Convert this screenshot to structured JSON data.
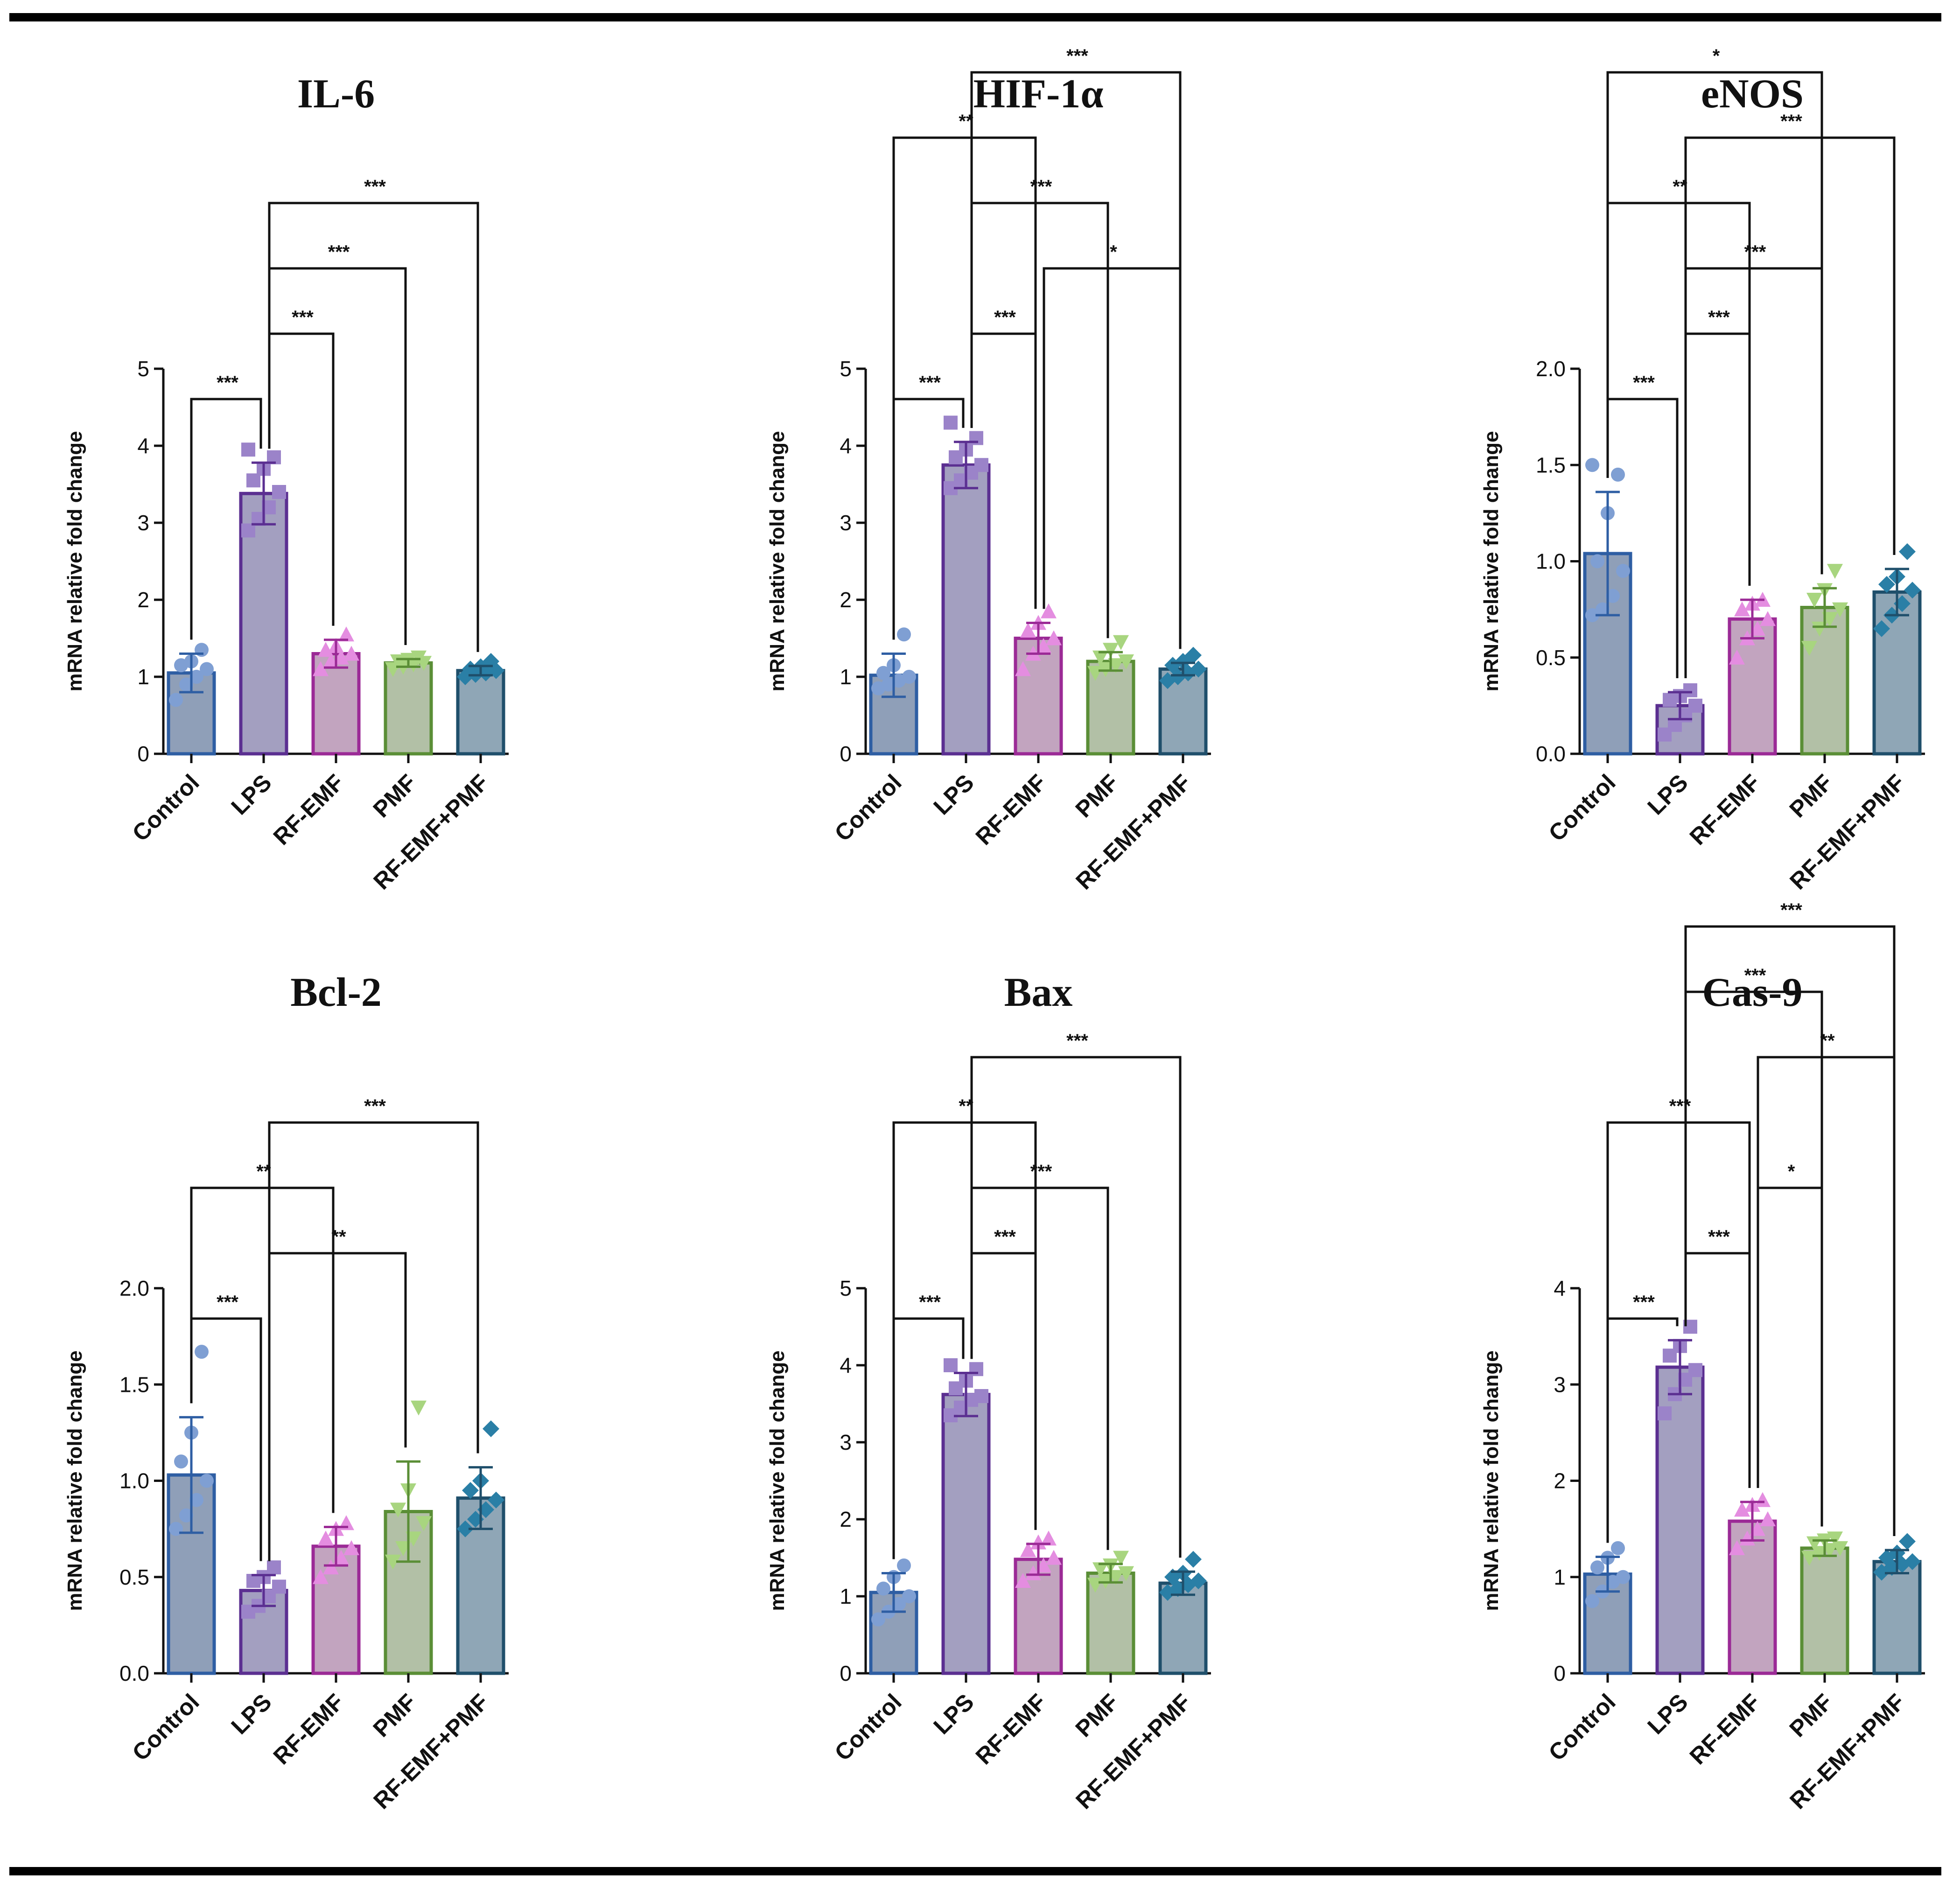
{
  "figure": {
    "y_axis_label": "mRNA relative fold change"
  },
  "groups": [
    "Control",
    "LPS",
    "RF-EMF",
    "PMF",
    "RF-EMF+PMF"
  ],
  "group_styles": [
    {
      "name": "Control",
      "fill": "#8f9fb8",
      "stroke": "#2e5ea3",
      "point": "#7f9fd3",
      "marker": "circle"
    },
    {
      "name": "LPS",
      "fill": "#a39fc0",
      "stroke": "#5b2f91",
      "point": "#9b83c9",
      "marker": "square"
    },
    {
      "name": "RF-EMF",
      "fill": "#c2a4bf",
      "stroke": "#9b2a96",
      "point": "#e48de0",
      "marker": "triangle-up"
    },
    {
      "name": "PMF",
      "fill": "#b2c0a6",
      "stroke": "#5a8e36",
      "point": "#a8d57f",
      "marker": "triangle-down"
    },
    {
      "name": "RF-EMF+PMF",
      "fill": "#8fa6b6",
      "stroke": "#1f4f6b",
      "point": "#2a7fa6",
      "marker": "diamond"
    }
  ],
  "chart_data": [
    {
      "type": "bar",
      "title": "IL-6",
      "ylabel": "mRNA relative fold change",
      "categories": [
        "Control",
        "LPS",
        "RF-EMF",
        "PMF",
        "RF-EMF+PMF"
      ],
      "values": [
        1.05,
        3.38,
        1.3,
        1.18,
        1.08
      ],
      "errors": [
        0.25,
        0.4,
        0.18,
        0.05,
        0.06
      ],
      "points": [
        [
          0.7,
          0.9,
          1.0,
          1.1,
          1.15,
          1.2,
          1.35
        ],
        [
          2.9,
          3.05,
          3.2,
          3.4,
          3.55,
          3.7,
          3.85,
          3.95
        ],
        [
          1.1,
          1.2,
          1.25,
          1.3,
          1.35,
          1.4,
          1.55
        ],
        [
          1.1,
          1.13,
          1.16,
          1.18,
          1.2,
          1.22,
          1.25
        ],
        [
          1.0,
          1.03,
          1.05,
          1.08,
          1.1,
          1.13,
          1.2
        ]
      ],
      "ylim": [
        0,
        5
      ],
      "yticks": [
        0,
        1,
        2,
        3,
        4,
        5
      ],
      "ytick_labels": [
        "0",
        "1",
        "2",
        "3",
        "4",
        "5"
      ],
      "significance": [
        {
          "from": "Control",
          "to": "LPS",
          "label": "***"
        },
        {
          "from": "LPS",
          "to": "RF-EMF",
          "label": "***"
        },
        {
          "from": "LPS",
          "to": "PMF",
          "label": "***"
        },
        {
          "from": "LPS",
          "to": "RF-EMF+PMF",
          "label": "***"
        }
      ]
    },
    {
      "type": "bar",
      "title": "HIF-1α",
      "ylabel": "mRNA relative fold change",
      "categories": [
        "Control",
        "LPS",
        "RF-EMF",
        "PMF",
        "RF-EMF+PMF"
      ],
      "values": [
        1.02,
        3.75,
        1.5,
        1.2,
        1.1
      ],
      "errors": [
        0.28,
        0.3,
        0.2,
        0.12,
        0.08
      ],
      "points": [
        [
          0.85,
          0.9,
          0.95,
          1.0,
          1.05,
          1.15,
          1.55
        ],
        [
          3.45,
          3.55,
          3.65,
          3.75,
          3.85,
          3.95,
          4.1,
          4.3
        ],
        [
          1.1,
          1.3,
          1.4,
          1.5,
          1.6,
          1.7,
          1.85
        ],
        [
          1.05,
          1.1,
          1.15,
          1.2,
          1.25,
          1.35,
          1.45
        ],
        [
          0.95,
          1.0,
          1.05,
          1.1,
          1.15,
          1.2,
          1.28
        ]
      ],
      "ylim": [
        0,
        5
      ],
      "yticks": [
        0,
        1,
        2,
        3,
        4,
        5
      ],
      "ytick_labels": [
        "0",
        "1",
        "2",
        "3",
        "4",
        "5"
      ],
      "significance": [
        {
          "from": "Control",
          "to": "LPS",
          "label": "***"
        },
        {
          "from": "LPS",
          "to": "RF-EMF",
          "label": "***"
        },
        {
          "from": "RF-EMF",
          "to": "RF-EMF+PMF",
          "label": "*"
        },
        {
          "from": "LPS",
          "to": "PMF",
          "label": "***"
        },
        {
          "from": "Control",
          "to": "RF-EMF",
          "label": "**"
        },
        {
          "from": "LPS",
          "to": "RF-EMF+PMF",
          "label": "***"
        }
      ]
    },
    {
      "type": "bar",
      "title": "eNOS",
      "ylabel": "mRNA relative fold change",
      "categories": [
        "Control",
        "LPS",
        "RF-EMF",
        "PMF",
        "RF-EMF+PMF"
      ],
      "values": [
        1.04,
        0.25,
        0.7,
        0.76,
        0.84
      ],
      "errors": [
        0.32,
        0.07,
        0.1,
        0.1,
        0.12
      ],
      "points": [
        [
          0.72,
          0.75,
          0.82,
          0.95,
          1.0,
          1.25,
          1.45,
          1.5
        ],
        [
          0.1,
          0.15,
          0.2,
          0.25,
          0.28,
          0.3,
          0.33
        ],
        [
          0.5,
          0.6,
          0.65,
          0.7,
          0.75,
          0.78,
          0.8
        ],
        [
          0.55,
          0.65,
          0.7,
          0.75,
          0.8,
          0.85,
          0.95
        ],
        [
          0.65,
          0.72,
          0.78,
          0.85,
          0.88,
          0.92,
          1.05
        ]
      ],
      "ylim": [
        0,
        2
      ],
      "yticks": [
        0,
        0.5,
        1,
        1.5,
        2
      ],
      "ytick_labels": [
        "0.0",
        "0.5",
        "1.0",
        "1.5",
        "2.0"
      ],
      "significance": [
        {
          "from": "Control",
          "to": "LPS",
          "label": "***"
        },
        {
          "from": "LPS",
          "to": "RF-EMF",
          "label": "***"
        },
        {
          "from": "LPS",
          "to": "PMF",
          "label": "***"
        },
        {
          "from": "Control",
          "to": "RF-EMF",
          "label": "**"
        },
        {
          "from": "LPS",
          "to": "RF-EMF+PMF",
          "label": "***"
        },
        {
          "from": "Control",
          "to": "PMF",
          "label": "*"
        }
      ]
    },
    {
      "type": "bar",
      "title": "Bcl-2",
      "ylabel": "mRNA relative fold change",
      "categories": [
        "Control",
        "LPS",
        "RF-EMF",
        "PMF",
        "RF-EMF+PMF"
      ],
      "values": [
        1.03,
        0.43,
        0.66,
        0.84,
        0.91
      ],
      "errors": [
        0.3,
        0.08,
        0.1,
        0.26,
        0.16
      ],
      "points": [
        [
          0.75,
          0.82,
          0.9,
          1.0,
          1.1,
          1.25,
          1.67
        ],
        [
          0.32,
          0.35,
          0.4,
          0.45,
          0.48,
          0.5,
          0.55
        ],
        [
          0.5,
          0.55,
          0.6,
          0.65,
          0.7,
          0.75,
          0.78
        ],
        [
          0.58,
          0.65,
          0.7,
          0.78,
          0.85,
          0.95,
          1.38
        ],
        [
          0.75,
          0.8,
          0.85,
          0.9,
          0.95,
          1.0,
          1.27
        ]
      ],
      "ylim": [
        0,
        2
      ],
      "yticks": [
        0,
        0.5,
        1,
        1.5,
        2
      ],
      "ytick_labels": [
        "0.0",
        "0.5",
        "1.0",
        "1.5",
        "2.0"
      ],
      "significance": [
        {
          "from": "Control",
          "to": "LPS",
          "label": "***"
        },
        {
          "from": "LPS",
          "to": "PMF",
          "label": "**"
        },
        {
          "from": "Control",
          "to": "RF-EMF",
          "label": "**"
        },
        {
          "from": "LPS",
          "to": "RF-EMF+PMF",
          "label": "***"
        }
      ]
    },
    {
      "type": "bar",
      "title": "Bax",
      "ylabel": "mRNA relative fold change",
      "categories": [
        "Control",
        "LPS",
        "RF-EMF",
        "PMF",
        "RF-EMF+PMF"
      ],
      "values": [
        1.05,
        3.62,
        1.48,
        1.3,
        1.17
      ],
      "errors": [
        0.25,
        0.28,
        0.2,
        0.12,
        0.15
      ],
      "points": [
        [
          0.7,
          0.8,
          0.9,
          1.0,
          1.1,
          1.25,
          1.4
        ],
        [
          3.35,
          3.45,
          3.55,
          3.6,
          3.7,
          3.8,
          3.95,
          4.0
        ],
        [
          1.2,
          1.3,
          1.4,
          1.5,
          1.6,
          1.7,
          1.75
        ],
        [
          1.15,
          1.2,
          1.25,
          1.3,
          1.35,
          1.4,
          1.5
        ],
        [
          1.05,
          1.1,
          1.15,
          1.2,
          1.25,
          1.3,
          1.48
        ]
      ],
      "ylim": [
        0,
        5
      ],
      "yticks": [
        0,
        1,
        2,
        3,
        4,
        5
      ],
      "ytick_labels": [
        "0",
        "1",
        "2",
        "3",
        "4",
        "5"
      ],
      "significance": [
        {
          "from": "Control",
          "to": "LPS",
          "label": "***"
        },
        {
          "from": "LPS",
          "to": "RF-EMF",
          "label": "***"
        },
        {
          "from": "LPS",
          "to": "PMF",
          "label": "***"
        },
        {
          "from": "Control",
          "to": "RF-EMF",
          "label": "**"
        },
        {
          "from": "LPS",
          "to": "RF-EMF+PMF",
          "label": "***"
        }
      ]
    },
    {
      "type": "bar",
      "title": "Cas-9",
      "ylabel": "mRNA relative fold change",
      "categories": [
        "Control",
        "LPS",
        "RF-EMF",
        "PMF",
        "RF-EMF+PMF"
      ],
      "values": [
        1.03,
        3.18,
        1.58,
        1.3,
        1.16
      ],
      "errors": [
        0.18,
        0.28,
        0.2,
        0.08,
        0.12
      ],
      "points": [
        [
          0.75,
          0.85,
          0.95,
          1.0,
          1.1,
          1.2,
          1.3
        ],
        [
          2.7,
          2.9,
          3.05,
          3.15,
          3.3,
          3.4,
          3.6
        ],
        [
          1.3,
          1.4,
          1.5,
          1.6,
          1.7,
          1.75,
          1.8
        ],
        [
          1.2,
          1.25,
          1.28,
          1.3,
          1.35,
          1.38,
          1.4
        ],
        [
          1.05,
          1.1,
          1.13,
          1.16,
          1.2,
          1.25,
          1.37
        ]
      ],
      "ylim": [
        0,
        4
      ],
      "yticks": [
        0,
        1,
        2,
        3,
        4
      ],
      "ytick_labels": [
        "0",
        "1",
        "2",
        "3",
        "4"
      ],
      "significance": [
        {
          "from": "Control",
          "to": "LPS",
          "label": "***"
        },
        {
          "from": "LPS",
          "to": "RF-EMF",
          "label": "***"
        },
        {
          "from": "RF-EMF",
          "to": "PMF",
          "label": "*"
        },
        {
          "from": "Control",
          "to": "RF-EMF",
          "label": "***"
        },
        {
          "from": "RF-EMF",
          "to": "RF-EMF+PMF",
          "label": "**"
        },
        {
          "from": "LPS",
          "to": "PMF",
          "label": "***"
        },
        {
          "from": "LPS",
          "to": "RF-EMF+PMF",
          "label": "***"
        }
      ]
    }
  ]
}
